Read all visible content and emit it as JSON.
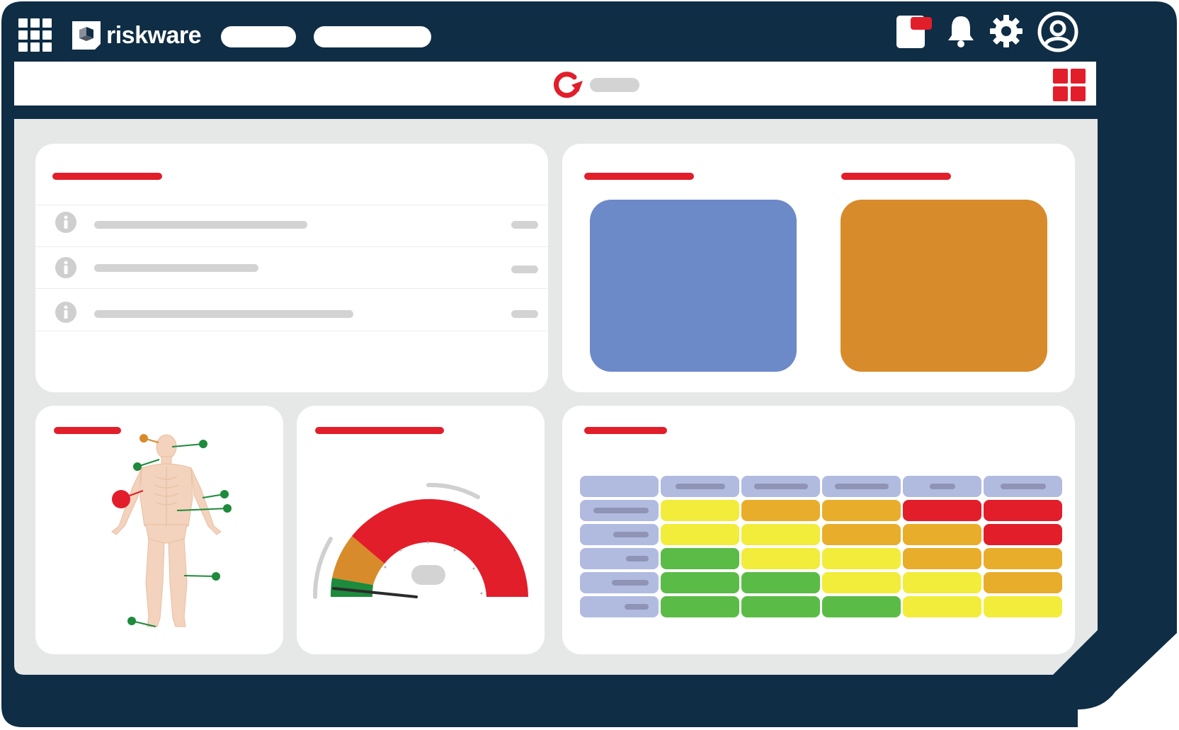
{
  "header": {
    "brand_name": "riskware",
    "icons": [
      "apps-grid-icon",
      "brand-logo-icon",
      "notification-card-icon",
      "bell-icon",
      "gear-icon",
      "user-avatar-icon"
    ]
  },
  "toolbar": {
    "icons": [
      "refresh-icon",
      "layout-grid-icon"
    ]
  },
  "colors": {
    "frame": "#0f2d45",
    "background": "#e6e8e8",
    "accent_red": "#e21e2b",
    "card_blue": "#6d8ac8",
    "card_orange": "#d88b2a",
    "heat_green": "#5bbb47",
    "heat_yellow": "#f2ec3b",
    "heat_amber": "#e8ad2a",
    "heat_red": "#e21e2b",
    "heat_header": "#b1bbe0"
  },
  "info_list": {
    "rows": [
      {
        "icon": "info-icon"
      },
      {
        "icon": "info-icon"
      },
      {
        "icon": "info-icon"
      }
    ]
  },
  "gauge": {
    "segments": [
      "green",
      "orange",
      "red"
    ],
    "level": 0.05
  },
  "heatmap": {
    "rows": [
      [
        "yellow",
        "amber",
        "amber",
        "red",
        "red"
      ],
      [
        "yellow",
        "yellow",
        "amber",
        "amber",
        "red"
      ],
      [
        "green",
        "yellow",
        "yellow",
        "amber",
        "amber"
      ],
      [
        "green",
        "green",
        "yellow",
        "yellow",
        "amber"
      ],
      [
        "green",
        "green",
        "green",
        "yellow",
        "yellow"
      ]
    ]
  }
}
